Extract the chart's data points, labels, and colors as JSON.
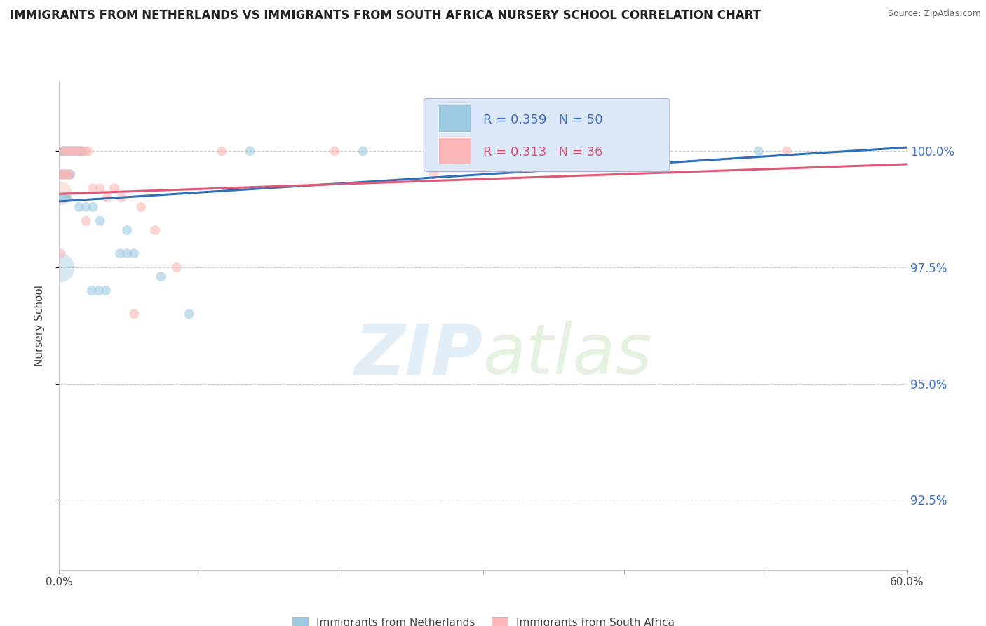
{
  "title": "IMMIGRANTS FROM NETHERLANDS VS IMMIGRANTS FROM SOUTH AFRICA NURSERY SCHOOL CORRELATION CHART",
  "source": "Source: ZipAtlas.com",
  "ylabel": "Nursery School",
  "xlim": [
    0.0,
    60.0
  ],
  "ylim": [
    91.0,
    101.5
  ],
  "yticks": [
    92.5,
    95.0,
    97.5,
    100.0
  ],
  "ytick_labels": [
    "92.5%",
    "95.0%",
    "97.5%",
    "100.0%"
  ],
  "xtick_labels": [
    "0.0%",
    "",
    "",
    "",
    "",
    "",
    "60.0%"
  ],
  "R_blue": 0.359,
  "N_blue": 50,
  "R_pink": 0.313,
  "N_pink": 36,
  "blue_color": "#9ecae1",
  "pink_color": "#fcb8b8",
  "blue_line_color": "#3070b8",
  "pink_line_color": "#e05878",
  "blue_scatter": [
    [
      0.15,
      100.0
    ],
    [
      0.25,
      100.0
    ],
    [
      0.35,
      100.0
    ],
    [
      0.45,
      100.0
    ],
    [
      0.55,
      100.0
    ],
    [
      0.65,
      100.0
    ],
    [
      0.75,
      100.0
    ],
    [
      0.85,
      100.0
    ],
    [
      0.95,
      100.0
    ],
    [
      1.05,
      100.0
    ],
    [
      1.15,
      100.0
    ],
    [
      1.25,
      100.0
    ],
    [
      1.35,
      100.0
    ],
    [
      1.45,
      100.0
    ],
    [
      1.55,
      100.0
    ],
    [
      0.1,
      99.5
    ],
    [
      0.2,
      99.5
    ],
    [
      0.3,
      99.5
    ],
    [
      0.4,
      99.5
    ],
    [
      0.5,
      99.5
    ],
    [
      0.6,
      99.5
    ],
    [
      0.7,
      99.5
    ],
    [
      0.8,
      99.5
    ],
    [
      0.25,
      99.0
    ],
    [
      0.35,
      99.0
    ],
    [
      0.45,
      99.0
    ],
    [
      0.55,
      99.0
    ],
    [
      1.4,
      98.8
    ],
    [
      1.9,
      98.8
    ],
    [
      2.4,
      98.8
    ],
    [
      2.9,
      98.5
    ],
    [
      4.8,
      98.3
    ],
    [
      4.3,
      97.8
    ],
    [
      4.8,
      97.8
    ],
    [
      5.3,
      97.8
    ],
    [
      7.2,
      97.3
    ],
    [
      2.3,
      97.0
    ],
    [
      2.8,
      97.0
    ],
    [
      3.3,
      97.0
    ],
    [
      9.2,
      96.5
    ],
    [
      13.5,
      100.0
    ],
    [
      21.5,
      100.0
    ],
    [
      29.5,
      100.0
    ],
    [
      37.5,
      100.0
    ],
    [
      49.5,
      100.0
    ]
  ],
  "blue_sizes": [
    100,
    100,
    100,
    100,
    100,
    100,
    100,
    100,
    100,
    100,
    100,
    100,
    100,
    100,
    100,
    100,
    100,
    100,
    100,
    100,
    100,
    100,
    100,
    100,
    100,
    100,
    100,
    100,
    100,
    100,
    100,
    100,
    100,
    100,
    100,
    100,
    100,
    100,
    100,
    100,
    100,
    100,
    100,
    100,
    100
  ],
  "blue_large": [
    [
      0.05,
      97.5
    ]
  ],
  "pink_scatter": [
    [
      0.25,
      100.0
    ],
    [
      0.45,
      100.0
    ],
    [
      0.65,
      100.0
    ],
    [
      0.85,
      100.0
    ],
    [
      1.05,
      100.0
    ],
    [
      1.25,
      100.0
    ],
    [
      1.45,
      100.0
    ],
    [
      1.65,
      100.0
    ],
    [
      1.85,
      100.0
    ],
    [
      2.05,
      100.0
    ],
    [
      0.15,
      99.5
    ],
    [
      0.35,
      99.5
    ],
    [
      0.55,
      99.5
    ],
    [
      0.75,
      99.5
    ],
    [
      2.4,
      99.2
    ],
    [
      2.9,
      99.2
    ],
    [
      3.9,
      99.2
    ],
    [
      3.4,
      99.0
    ],
    [
      4.4,
      99.0
    ],
    [
      1.9,
      98.5
    ],
    [
      5.8,
      98.8
    ],
    [
      6.8,
      98.3
    ],
    [
      0.1,
      97.8
    ],
    [
      8.3,
      97.5
    ],
    [
      5.3,
      96.5
    ],
    [
      51.5,
      100.0
    ],
    [
      11.5,
      100.0
    ],
    [
      19.5,
      100.0
    ],
    [
      26.5,
      99.5
    ]
  ],
  "pink_large": [
    [
      0.05,
      99.1
    ]
  ],
  "blue_trendline": [
    [
      0.0,
      98.92
    ],
    [
      60.0,
      100.08
    ]
  ],
  "pink_trendline": [
    [
      0.0,
      99.08
    ],
    [
      60.0,
      99.72
    ]
  ]
}
